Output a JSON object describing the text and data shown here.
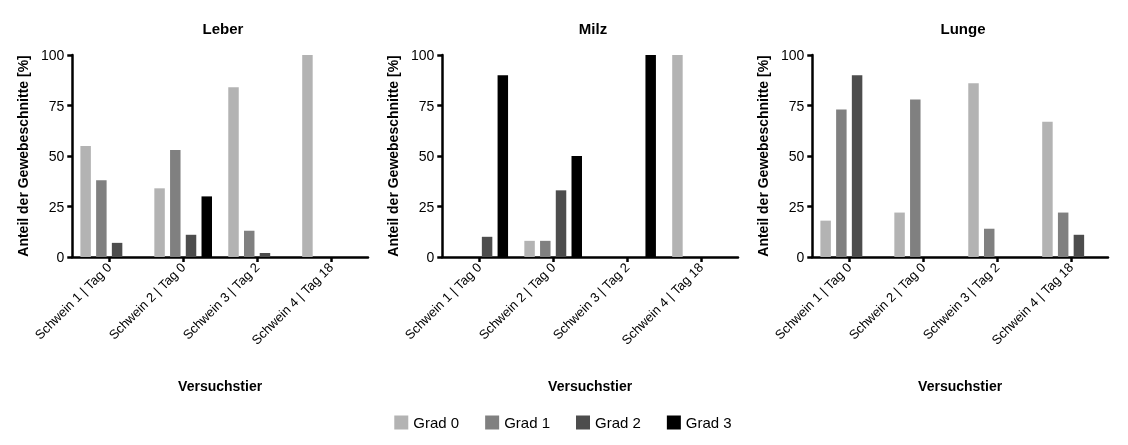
{
  "chart_data": [
    {
      "type": "bar",
      "title": "Leber",
      "xlabel": "Versuchstier",
      "ylabel": "Anteil der Gewebeschnitte [%]",
      "categories": [
        "Schwein 1 | Tag 0",
        "Schwein 2 | Tag 0",
        "Schwein 3 | Tag 2",
        "Schwein 4 | Tag 18"
      ],
      "series": [
        {
          "color": "#b3b3b3",
          "values": [
            55,
            34,
            84,
            100
          ]
        },
        {
          "color": "#808080",
          "values": [
            38,
            53,
            13,
            0
          ]
        },
        {
          "color": "#4d4d4d",
          "values": [
            7,
            11,
            2,
            0
          ]
        },
        {
          "color": "#000000",
          "values": [
            0,
            30,
            0,
            0
          ]
        }
      ],
      "ylim": [
        0,
        100
      ],
      "yticks": [
        0,
        25,
        50,
        75,
        100
      ],
      "grid": false,
      "legend": false
    },
    {
      "type": "bar",
      "title": "Milz",
      "xlabel": "Versuchstier",
      "ylabel": "Anteil der Gewebeschnitte [%]",
      "categories": [
        "Schwein 1 | Tag 0",
        "Schwein 2 | Tag 0",
        "Schwein 3 | Tag 2",
        "Schwein 4 | Tag 18"
      ],
      "series": [
        {
          "name": "Grad 0",
          "color": "#b3b3b3",
          "values": [
            0,
            8,
            0,
            100
          ]
        },
        {
          "name": "Grad 1",
          "color": "#808080",
          "values": [
            0,
            8,
            0,
            0
          ]
        },
        {
          "name": "Grad 2",
          "color": "#4d4d4d",
          "values": [
            10,
            33,
            0,
            0
          ]
        },
        {
          "name": "Grad 3",
          "color": "#000000",
          "values": [
            90,
            50,
            100,
            0
          ]
        }
      ],
      "ylim": [
        0,
        100
      ],
      "yticks": [
        0,
        25,
        50,
        75,
        100
      ],
      "grid": false,
      "legend": "bottom"
    },
    {
      "type": "bar",
      "title": "Lunge",
      "xlabel": "Versuchstier",
      "ylabel": "Anteil der Gewebeschnitte [%]",
      "categories": [
        "Schwein 1 | Tag 0",
        "Schwein 2 | Tag 0",
        "Schwein 3 | Tag 2",
        "Schwein 4 | Tag 18"
      ],
      "series": [
        {
          "color": "#b3b3b3",
          "values": [
            18,
            22,
            86,
            67
          ]
        },
        {
          "color": "#808080",
          "values": [
            73,
            78,
            14,
            22
          ]
        },
        {
          "color": "#4d4d4d",
          "values": [
            90,
            0,
            0,
            11
          ]
        },
        {
          "color": "#000000",
          "values": [
            0,
            0,
            0,
            0
          ]
        }
      ],
      "ylim": [
        0,
        100
      ],
      "yticks": [
        0,
        25,
        50,
        75,
        100
      ],
      "grid": false,
      "legend": false
    }
  ]
}
